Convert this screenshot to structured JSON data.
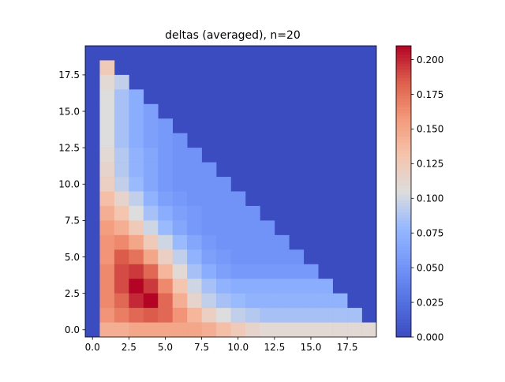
{
  "chart_data": {
    "type": "heatmap",
    "title": "deltas (averaged), n=20",
    "xlabel": "",
    "ylabel": "",
    "x_ticks": [
      "0.0",
      "2.5",
      "5.0",
      "7.5",
      "10.0",
      "12.5",
      "15.0",
      "17.5"
    ],
    "y_ticks": [
      "0.0",
      "2.5",
      "5.0",
      "7.5",
      "10.0",
      "12.5",
      "15.0",
      "17.5"
    ],
    "colorbar_ticks": [
      "0.000",
      "0.025",
      "0.050",
      "0.075",
      "0.100",
      "0.125",
      "0.150",
      "0.175",
      "0.200"
    ],
    "colorbar_range": [
      0,
      0.21
    ],
    "xlim": [
      -0.5,
      19.5
    ],
    "ylim": [
      -0.5,
      19.5
    ],
    "colormap": "coolwarm",
    "grid": false,
    "background_color": "#3b4cc0",
    "note_rows": "rows listed top to bottom as in the image; each row lists cells from column 1 rightward",
    "rows": [
      {
        "y": 18,
        "x_start": 1,
        "values": [
          0.125
        ]
      },
      {
        "y": 17,
        "x_start": 1,
        "values": [
          0.11,
          0.095
        ]
      },
      {
        "y": 16,
        "x_start": 1,
        "values": [
          0.105,
          0.085,
          0.07
        ]
      },
      {
        "y": 15,
        "x_start": 1,
        "values": [
          0.105,
          0.085,
          0.07,
          0.06
        ]
      },
      {
        "y": 14,
        "x_start": 1,
        "values": [
          0.105,
          0.085,
          0.07,
          0.06,
          0.055
        ]
      },
      {
        "y": 13,
        "x_start": 1,
        "values": [
          0.105,
          0.085,
          0.07,
          0.06,
          0.055,
          0.05
        ]
      },
      {
        "y": 12,
        "x_start": 1,
        "values": [
          0.11,
          0.09,
          0.075,
          0.065,
          0.055,
          0.05,
          0.05
        ]
      },
      {
        "y": 11,
        "x_start": 1,
        "values": [
          0.115,
          0.09,
          0.075,
          0.065,
          0.055,
          0.05,
          0.05,
          0.05
        ]
      },
      {
        "y": 10,
        "x_start": 1,
        "values": [
          0.12,
          0.095,
          0.08,
          0.065,
          0.055,
          0.05,
          0.05,
          0.05,
          0.05
        ]
      },
      {
        "y": 9,
        "x_start": 1,
        "values": [
          0.135,
          0.115,
          0.095,
          0.075,
          0.06,
          0.055,
          0.05,
          0.05,
          0.05,
          0.05
        ]
      },
      {
        "y": 8,
        "x_start": 1,
        "values": [
          0.145,
          0.13,
          0.105,
          0.085,
          0.07,
          0.06,
          0.055,
          0.05,
          0.05,
          0.05,
          0.05
        ]
      },
      {
        "y": 7,
        "x_start": 1,
        "values": [
          0.155,
          0.145,
          0.125,
          0.1,
          0.08,
          0.065,
          0.055,
          0.05,
          0.05,
          0.05,
          0.05,
          0.05
        ]
      },
      {
        "y": 6,
        "x_start": 1,
        "values": [
          0.16,
          0.165,
          0.15,
          0.125,
          0.1,
          0.08,
          0.065,
          0.055,
          0.05,
          0.05,
          0.05,
          0.05,
          0.05
        ]
      },
      {
        "y": 5,
        "x_start": 1,
        "values": [
          0.16,
          0.185,
          0.175,
          0.15,
          0.12,
          0.095,
          0.075,
          0.06,
          0.055,
          0.05,
          0.05,
          0.05,
          0.05,
          0.05
        ]
      },
      {
        "y": 4,
        "x_start": 1,
        "values": [
          0.165,
          0.19,
          0.195,
          0.18,
          0.14,
          0.11,
          0.085,
          0.07,
          0.06,
          0.055,
          0.055,
          0.055,
          0.055,
          0.055,
          0.055
        ]
      },
      {
        "y": 3,
        "x_start": 1,
        "values": [
          0.165,
          0.19,
          0.21,
          0.195,
          0.165,
          0.13,
          0.1,
          0.085,
          0.075,
          0.07,
          0.07,
          0.07,
          0.07,
          0.07,
          0.07,
          0.07
        ]
      },
      {
        "y": 2,
        "x_start": 1,
        "values": [
          0.165,
          0.18,
          0.2,
          0.21,
          0.18,
          0.145,
          0.115,
          0.095,
          0.085,
          0.08,
          0.075,
          0.075,
          0.075,
          0.075,
          0.075,
          0.075,
          0.075
        ]
      },
      {
        "y": 1,
        "x_start": 1,
        "values": [
          0.16,
          0.17,
          0.18,
          0.185,
          0.18,
          0.16,
          0.14,
          0.12,
          0.105,
          0.095,
          0.09,
          0.085,
          0.085,
          0.085,
          0.085,
          0.085,
          0.085,
          0.085
        ]
      },
      {
        "y": 0,
        "x_start": 1,
        "values": [
          0.145,
          0.145,
          0.15,
          0.15,
          0.15,
          0.15,
          0.15,
          0.145,
          0.135,
          0.125,
          0.115,
          0.11,
          0.11,
          0.11,
          0.11,
          0.11,
          0.11,
          0.11,
          0.11
        ]
      }
    ]
  }
}
